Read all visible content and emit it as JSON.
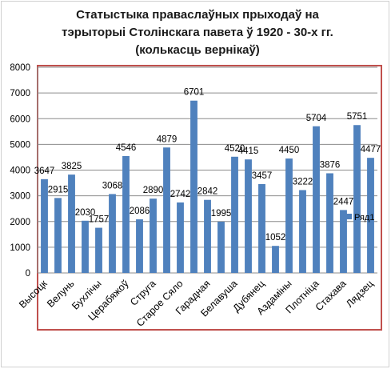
{
  "chart_data": {
    "type": "bar",
    "title_lines": [
      "Статыстыка праваслаўных прыходаў на",
      "тэрыторыі Столінскага павета ў 1920 - 30-х гг.",
      "(колькасць вернікаў)"
    ],
    "categories": [
      "Высоцк",
      "",
      "Велунь",
      "",
      "Бухлічы",
      "",
      "Церабяжоў",
      "",
      "Струга",
      "",
      "Старое Сяло",
      "",
      "Гарадная",
      "",
      "Белавуша",
      "",
      "Дубянец",
      "",
      "Аздаміны",
      "",
      "Плотніца",
      "",
      "Стахава",
      "",
      "Лядзец"
    ],
    "series": [
      {
        "name": "Ряд1",
        "color": "#4f81bd",
        "values": [
          3647,
          2915,
          3825,
          2030,
          1757,
          3068,
          4546,
          2086,
          2890,
          4879,
          2742,
          6701,
          2842,
          1995,
          4520,
          4415,
          3457,
          1052,
          4450,
          3222,
          5704,
          3876,
          2447,
          5751,
          4477
        ]
      }
    ],
    "data_labels": [
      "3647",
      "2915",
      "3825",
      "2030",
      "1757",
      "3068",
      "4546",
      "2086",
      "2890",
      "4879",
      "2742",
      "6701",
      "2842",
      "1995",
      "4520",
      "4415",
      "3457",
      "1052",
      "4450",
      "3222",
      "5704",
      "3876",
      "2447",
      "5751",
      "4477"
    ],
    "y_ticks": [
      "0",
      "1000",
      "2000",
      "3000",
      "4000",
      "5000",
      "6000",
      "7000",
      "8000"
    ],
    "ylim": [
      0,
      8000
    ],
    "grid": true,
    "legend": "right",
    "plot_border_color": "#c0504d"
  }
}
